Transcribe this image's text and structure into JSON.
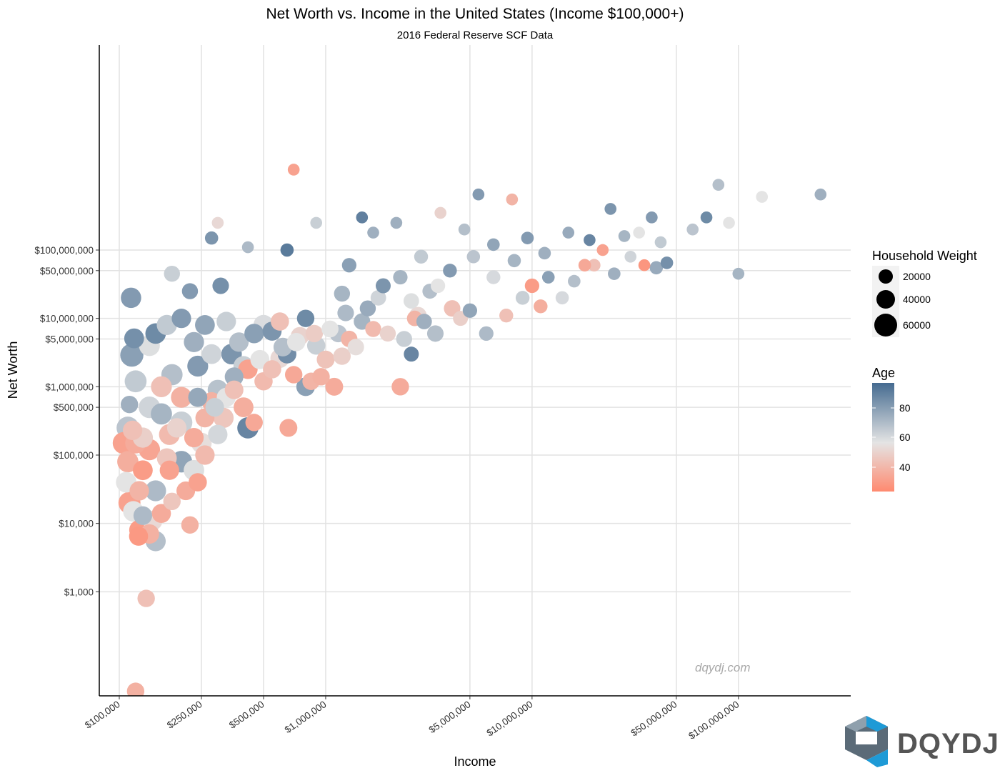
{
  "chart_data": {
    "type": "scatter",
    "title": "Net Worth vs. Income in the United States (Income $100,000+)",
    "subtitle": "2016 Federal Reserve SCF Data",
    "xlabel": "Income",
    "ylabel": "Net Worth",
    "x_scale": "log10",
    "y_scale": "log10",
    "xlim": [
      80000,
      350000000
    ],
    "ylim": [
      30,
      100000000000
    ],
    "x_ticks": [
      {
        "value": 100000,
        "label": "$100,000"
      },
      {
        "value": 250000,
        "label": "$250,000"
      },
      {
        "value": 500000,
        "label": "$500,000"
      },
      {
        "value": 1000000,
        "label": "$1,000,000"
      },
      {
        "value": 5000000,
        "label": "$5,000,000"
      },
      {
        "value": 10000000,
        "label": "$10,000,000"
      },
      {
        "value": 50000000,
        "label": "$50,000,000"
      },
      {
        "value": 100000000,
        "label": "$100,000,000"
      }
    ],
    "y_ticks": [
      {
        "value": 1000,
        "label": "$1,000"
      },
      {
        "value": 10000,
        "label": "$10,000"
      },
      {
        "value": 100000,
        "label": "$100,000"
      },
      {
        "value": 500000,
        "label": "$500,000"
      },
      {
        "value": 1000000,
        "label": "$1,000,000"
      },
      {
        "value": 5000000,
        "label": "$5,000,000"
      },
      {
        "value": 10000000,
        "label": "$10,000,000"
      },
      {
        "value": 50000000,
        "label": "$50,000,000"
      },
      {
        "value": 100000000,
        "label": "$100,000,000"
      }
    ],
    "grid": true,
    "size_legend": {
      "title": "Household Weight",
      "entries": [
        20000,
        40000,
        60000
      ]
    },
    "color_legend": {
      "title": "Age",
      "ticks": [
        80,
        60,
        40
      ],
      "range": [
        22,
        98
      ],
      "colors": [
        "#ff8a70",
        "#e4e4e4",
        "#456b90"
      ]
    },
    "points_note": "representative sample of the thousands of household points shown",
    "points": [
      [
        114000,
        20000000,
        45000,
        80
      ],
      [
        115000,
        2900000,
        62000,
        78
      ],
      [
        118000,
        5100000,
        42000,
        84
      ],
      [
        112000,
        550000,
        30000,
        72
      ],
      [
        116000,
        230000,
        40000,
        40
      ],
      [
        120000,
        150000,
        48000,
        33
      ],
      [
        112000,
        20000,
        55000,
        30
      ],
      [
        117000,
        15000,
        46000,
        52
      ],
      [
        125000,
        8000,
        44000,
        28
      ],
      [
        124000,
        6500,
        38000,
        27
      ],
      [
        140000,
        7000,
        40000,
        35
      ],
      [
        150000,
        5500,
        44000,
        66
      ],
      [
        135000,
        800,
        30000,
        40
      ],
      [
        120000,
        35,
        30000,
        35
      ],
      [
        130000,
        13000,
        36000,
        68
      ],
      [
        145000,
        11000,
        42000,
        48
      ],
      [
        160000,
        14000,
        38000,
        33
      ],
      [
        150000,
        30000,
        48000,
        68
      ],
      [
        175000,
        60000,
        40000,
        30
      ],
      [
        200000,
        80000,
        52000,
        76
      ],
      [
        230000,
        60000,
        46000,
        54
      ],
      [
        210000,
        30000,
        36000,
        33
      ],
      [
        240000,
        40000,
        34000,
        30
      ],
      [
        220000,
        9500,
        30000,
        35
      ],
      [
        180000,
        21000,
        30000,
        42
      ],
      [
        160000,
        400000,
        50000,
        70
      ],
      [
        200000,
        300000,
        54000,
        60
      ],
      [
        175000,
        200000,
        48000,
        38
      ],
      [
        140000,
        120000,
        50000,
        31
      ],
      [
        130000,
        60000,
        42000,
        28
      ],
      [
        125000,
        30000,
        40000,
        36
      ],
      [
        190000,
        250000,
        40000,
        46
      ],
      [
        250000,
        150000,
        46000,
        50
      ],
      [
        260000,
        100000,
        40000,
        38
      ],
      [
        240000,
        700000,
        38000,
        75
      ],
      [
        280000,
        600000,
        40000,
        35
      ],
      [
        300000,
        900000,
        44000,
        65
      ],
      [
        320000,
        350000,
        44000,
        42
      ],
      [
        300000,
        200000,
        40000,
        57
      ],
      [
        360000,
        1400000,
        36000,
        72
      ],
      [
        400000,
        500000,
        42000,
        34
      ],
      [
        420000,
        250000,
        50000,
        88
      ],
      [
        450000,
        300000,
        30000,
        32
      ],
      [
        400000,
        2000000,
        44000,
        60
      ],
      [
        350000,
        3000000,
        46000,
        82
      ],
      [
        380000,
        4500000,
        40000,
        66
      ],
      [
        450000,
        6000000,
        40000,
        78
      ],
      [
        500000,
        8000000,
        44000,
        55
      ],
      [
        550000,
        6500000,
        38000,
        82
      ],
      [
        500000,
        1200000,
        34000,
        38
      ],
      [
        600000,
        2600000,
        38000,
        48
      ],
      [
        650000,
        3000000,
        36000,
        85
      ],
      [
        700000,
        1500000,
        30000,
        32
      ],
      [
        660000,
        250000,
        32000,
        32
      ],
      [
        800000,
        1000000,
        36000,
        78
      ],
      [
        850000,
        1200000,
        30000,
        36
      ],
      [
        750000,
        5500000,
        34000,
        46
      ],
      [
        900000,
        4000000,
        34000,
        60
      ],
      [
        950000,
        1400000,
        30000,
        35
      ],
      [
        1100000,
        1000000,
        32000,
        33
      ],
      [
        1000000,
        2500000,
        32000,
        41
      ],
      [
        1200000,
        2800000,
        30000,
        45
      ],
      [
        1150000,
        6000000,
        30000,
        64
      ],
      [
        1300000,
        5000000,
        26000,
        36
      ],
      [
        1400000,
        3800000,
        26000,
        50
      ],
      [
        1500000,
        9000000,
        26000,
        70
      ],
      [
        1700000,
        7000000,
        24000,
        38
      ],
      [
        2000000,
        6000000,
        24000,
        46
      ],
      [
        2400000,
        5000000,
        24000,
        60
      ],
      [
        2300000,
        1000000,
        30000,
        33
      ],
      [
        2700000,
        10000000,
        22000,
        36
      ],
      [
        2600000,
        3000000,
        20000,
        88
      ],
      [
        3000000,
        9000000,
        22000,
        72
      ],
      [
        3400000,
        6000000,
        26000,
        66
      ],
      [
        4500000,
        10000000,
        20000,
        45
      ],
      [
        5000000,
        13000000,
        18000,
        76
      ],
      [
        6000000,
        6000000,
        18000,
        68
      ],
      [
        7500000,
        11000000,
        16000,
        40
      ],
      [
        9000000,
        20000000,
        16000,
        60
      ],
      [
        11000000,
        15000000,
        16000,
        34
      ],
      [
        14000000,
        20000000,
        14000,
        56
      ],
      [
        12000000,
        40000000,
        12000,
        78
      ],
      [
        16000000,
        35000000,
        12000,
        66
      ],
      [
        20000000,
        60000000,
        12000,
        40
      ],
      [
        25000000,
        45000000,
        12000,
        72
      ],
      [
        30000000,
        80000000,
        10000,
        58
      ],
      [
        40000000,
        55000000,
        14000,
        74
      ],
      [
        42000000,
        130000000,
        10000,
        62
      ],
      [
        60000000,
        200000000,
        10000,
        64
      ],
      [
        70000000,
        300000000,
        10000,
        86
      ],
      [
        90000000,
        250000000,
        10000,
        52
      ],
      [
        100000000,
        45000000,
        10000,
        70
      ],
      [
        130000000,
        600000000,
        10000,
        52
      ],
      [
        250000000,
        650000000,
        10000,
        72
      ],
      [
        80000000,
        900000000,
        10000,
        66
      ],
      [
        5500000,
        650000000,
        10000,
        80
      ],
      [
        8000000,
        550000000,
        10000,
        36
      ],
      [
        2200000,
        250000000,
        10000,
        72
      ],
      [
        1500000,
        300000000,
        10000,
        90
      ],
      [
        700000,
        1500000000,
        10000,
        30
      ],
      [
        300000,
        250000000,
        10000,
        48
      ],
      [
        280000,
        150000000,
        14000,
        82
      ],
      [
        420000,
        110000000,
        10000,
        68
      ],
      [
        650000,
        100000000,
        14000,
        92
      ],
      [
        180000,
        45000000,
        24000,
        60
      ],
      [
        220000,
        25000000,
        24000,
        80
      ],
      [
        310000,
        30000000,
        26000,
        84
      ],
      [
        1200000,
        23000000,
        24000,
        70
      ],
      [
        4100000,
        14000000,
        26000,
        40
      ],
      [
        3500000,
        30000000,
        18000,
        52
      ],
      [
        6500000,
        40000000,
        16000,
        56
      ],
      [
        10000000,
        30000000,
        18000,
        28
      ],
      [
        18000000,
        60000000,
        12000,
        32
      ],
      [
        22000000,
        100000000,
        10000,
        30
      ],
      [
        35000000,
        60000000,
        10000,
        26
      ],
      [
        45000000,
        65000000,
        12000,
        84
      ],
      [
        2800000,
        11000000,
        30000,
        48
      ],
      [
        600000,
        9000000,
        34000,
        40
      ],
      [
        800000,
        10000000,
        30000,
        86
      ],
      [
        1800000,
        20000000,
        22000,
        58
      ],
      [
        200000,
        10000000,
        40000,
        80
      ],
      [
        170000,
        8000000,
        44000,
        62
      ],
      [
        150000,
        6000000,
        46000,
        86
      ],
      [
        260000,
        8000000,
        42000,
        76
      ],
      [
        330000,
        9000000,
        40000,
        60
      ],
      [
        230000,
        4500000,
        44000,
        72
      ],
      [
        140000,
        4000000,
        48000,
        54
      ],
      [
        120000,
        1200000,
        54000,
        62
      ],
      [
        180000,
        1500000,
        50000,
        66
      ],
      [
        240000,
        2000000,
        48000,
        80
      ],
      [
        280000,
        3000000,
        42000,
        58
      ],
      [
        160000,
        1000000,
        48000,
        40
      ],
      [
        200000,
        700000,
        48000,
        35
      ],
      [
        140000,
        500000,
        52000,
        58
      ],
      [
        110000,
        250000,
        58000,
        64
      ],
      [
        105000,
        150000,
        54000,
        30
      ],
      [
        110000,
        80000,
        50000,
        34
      ],
      [
        108000,
        40000,
        46000,
        52
      ],
      [
        130000,
        180000,
        44000,
        45
      ],
      [
        170000,
        90000,
        42000,
        42
      ],
      [
        230000,
        180000,
        40000,
        33
      ],
      [
        260000,
        350000,
        38000,
        36
      ],
      [
        290000,
        500000,
        36000,
        60
      ],
      [
        330000,
        700000,
        38000,
        52
      ],
      [
        360000,
        900000,
        36000,
        40
      ],
      [
        420000,
        1800000,
        40000,
        30
      ],
      [
        480000,
        2500000,
        38000,
        52
      ],
      [
        550000,
        1800000,
        34000,
        40
      ],
      [
        620000,
        3800000,
        36000,
        66
      ],
      [
        720000,
        4500000,
        34000,
        52
      ],
      [
        880000,
        6000000,
        30000,
        44
      ],
      [
        1050000,
        7000000,
        28000,
        52
      ],
      [
        1250000,
        12000000,
        26000,
        68
      ],
      [
        1600000,
        14000000,
        24000,
        74
      ],
      [
        1900000,
        30000000,
        20000,
        82
      ],
      [
        2300000,
        40000000,
        18000,
        70
      ],
      [
        2600000,
        18000000,
        22000,
        54
      ],
      [
        3200000,
        25000000,
        20000,
        66
      ],
      [
        4000000,
        50000000,
        16000,
        80
      ],
      [
        5200000,
        80000000,
        14000,
        64
      ],
      [
        6500000,
        120000000,
        12000,
        76
      ],
      [
        8200000,
        70000000,
        14000,
        70
      ],
      [
        9500000,
        150000000,
        12000,
        80
      ],
      [
        11500000,
        90000000,
        12000,
        72
      ],
      [
        15000000,
        180000000,
        10000,
        74
      ],
      [
        19000000,
        140000000,
        10000,
        88
      ],
      [
        28000000,
        160000000,
        10000,
        70
      ],
      [
        33000000,
        180000000,
        10000,
        52
      ],
      [
        38000000,
        300000000,
        10000,
        80
      ],
      [
        24000000,
        400000000,
        10000,
        82
      ],
      [
        1700000,
        180000000,
        10000,
        72
      ],
      [
        900000,
        250000000,
        10000,
        60
      ],
      [
        3600000,
        350000000,
        10000,
        46
      ],
      [
        4700000,
        200000000,
        10000,
        66
      ],
      [
        2900000,
        80000000,
        16000,
        62
      ],
      [
        1300000,
        60000000,
        18000,
        78
      ]
    ]
  },
  "watermark": "dqydj.com",
  "brand": {
    "name": "DQYDJ"
  }
}
